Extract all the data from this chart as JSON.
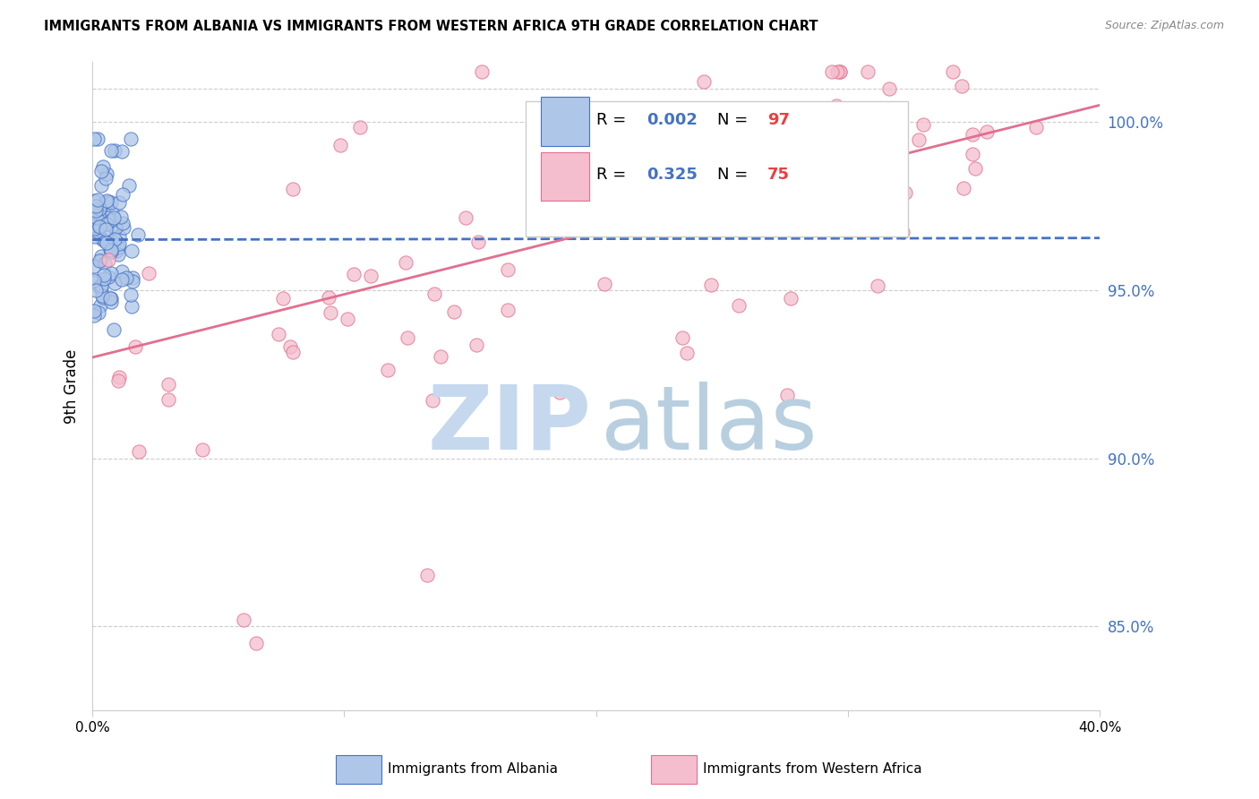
{
  "title": "IMMIGRANTS FROM ALBANIA VS IMMIGRANTS FROM WESTERN AFRICA 9TH GRADE CORRELATION CHART",
  "source": "Source: ZipAtlas.com",
  "ylabel": "9th Grade",
  "y_ticks": [
    85.0,
    90.0,
    95.0,
    100.0
  ],
  "x_range": [
    0.0,
    40.0
  ],
  "y_range": [
    82.5,
    101.8
  ],
  "albania_color": "#aec6e8",
  "western_africa_color": "#f4bece",
  "albania_line_color": "#4472c4",
  "western_africa_line_color": "#e07090",
  "r_albania": 0.002,
  "n_albania": 97,
  "r_western_africa": 0.325,
  "n_western_africa": 75,
  "albania_trend_y0": 96.5,
  "albania_trend_y1": 96.55,
  "wa_trend_y0": 93.0,
  "wa_trend_y1": 100.5,
  "watermark_zip_color": "#c5d8ee",
  "watermark_atlas_color": "#b8cfe0"
}
